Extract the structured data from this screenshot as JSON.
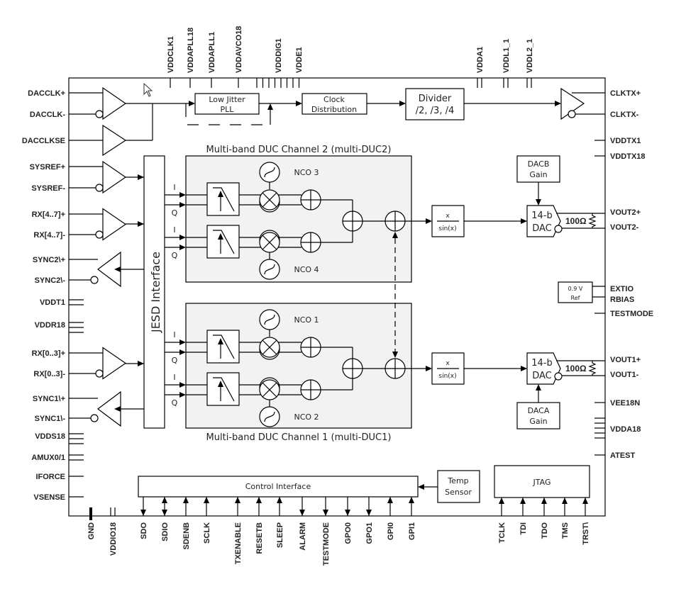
{
  "pins": {
    "left": [
      "DACCLK+",
      "DACCLK-",
      "DACCLKSE",
      "SYSREF+",
      "SYSREF-",
      "RX[4..7]+",
      "RX[4..7]-",
      "SYNC2\\+",
      "SYNC2\\-",
      "VDDT1",
      "VDDR18",
      "RX[0..3]+",
      "RX[0..3]-",
      "SYNC1\\+",
      "SYNC1\\-",
      "VDDS18",
      "AMUX0/1",
      "IFORCE",
      "VSENSE"
    ],
    "right": [
      "CLKTX+",
      "CLKTX-",
      "VDDTX1",
      "VDDTX18",
      "VOUT2+",
      "VOUT2-",
      "EXTIO",
      "RBIAS",
      "TESTMODE",
      "VOUT1+",
      "VOUT1-",
      "VEE18N",
      "VDDA18",
      "ATEST"
    ],
    "top": [
      "VDDCLK1",
      "VDDAPLL18",
      "VDDAPLL1",
      "VDDAVCO18",
      "VDDDIG1",
      "VDDE1",
      "VDDA1",
      "VDDL1_1",
      "VDDL2_1"
    ],
    "bottom": [
      "GND",
      "VDDIO18",
      "SDO",
      "SDIO",
      "SDENB",
      "SCLK",
      "TXENABLE",
      "RESETB",
      "SLEEP",
      "ALARM",
      "TESTMODE",
      "GPO0",
      "GPO1",
      "GPI0",
      "GPI1",
      "TCLK",
      "TDI",
      "TDO",
      "TMS",
      "TRST\\"
    ]
  },
  "blocks": {
    "pll": [
      "Low Jitter",
      "PLL"
    ],
    "clock_dist": [
      "Clock",
      "Distribution"
    ],
    "divider": [
      "Divider",
      "/2, /3, /4"
    ],
    "jesd": "JESD Interface",
    "duc2_title": "Multi-band DUC Channel 2 (multi-DUC2)",
    "duc1_title": "Multi-band DUC Channel 1 (multi-DUC1)",
    "nco": [
      "NCO 3",
      "NCO 4",
      "NCO 1",
      "NCO 2"
    ],
    "iq": [
      "I",
      "Q"
    ],
    "sinc": [
      "x",
      "sin(x)"
    ],
    "dac": [
      "14-b",
      "DAC"
    ],
    "resistor": "100Ω",
    "dacb_gain": [
      "DACB",
      "Gain"
    ],
    "daca_gain": [
      "DACA",
      "Gain"
    ],
    "ref": [
      "0.9 V",
      "Ref"
    ],
    "control": "Control Interface",
    "temp": [
      "Temp",
      "Sensor"
    ],
    "jtag": "JTAG"
  },
  "colors": {
    "duc_fill": "#f2f2f2",
    "line": "#000000"
  }
}
